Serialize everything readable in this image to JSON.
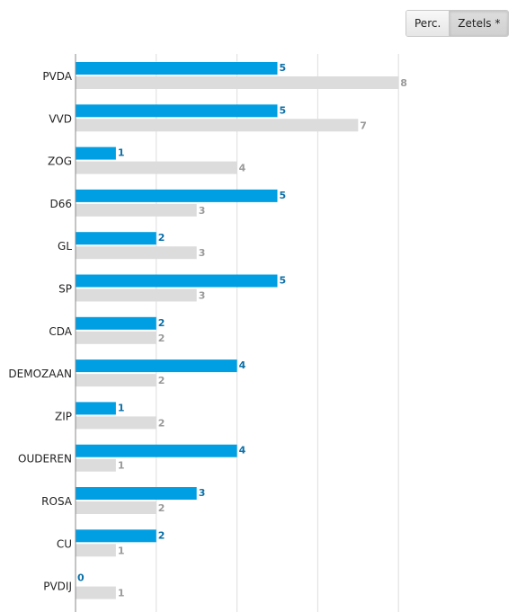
{
  "toggle": {
    "options": [
      "Perc.",
      "Zetels *"
    ],
    "active_index": 1
  },
  "colors": {
    "current": "#009fe3",
    "previous": "#dcdcdc",
    "grid": "#dddddd",
    "axis": "#888888"
  },
  "chart_data": {
    "type": "bar",
    "orientation": "horizontal",
    "categories": [
      "PVDA",
      "VVD",
      "ZOG",
      "D66",
      "GL",
      "SP",
      "CDA",
      "DEMOZAAN",
      "ZIP",
      "OUDEREN",
      "ROSA",
      "CU",
      "PVDIJ"
    ],
    "series": [
      {
        "values": [
          5,
          5,
          1,
          5,
          2,
          5,
          2,
          4,
          1,
          4,
          3,
          2,
          0
        ]
      },
      {
        "values": [
          8,
          7,
          4,
          3,
          3,
          3,
          2,
          2,
          2,
          1,
          2,
          1,
          1
        ]
      }
    ],
    "xlim": [
      0,
      8
    ],
    "grid": true,
    "legend": "none",
    "data_labels": true
  }
}
